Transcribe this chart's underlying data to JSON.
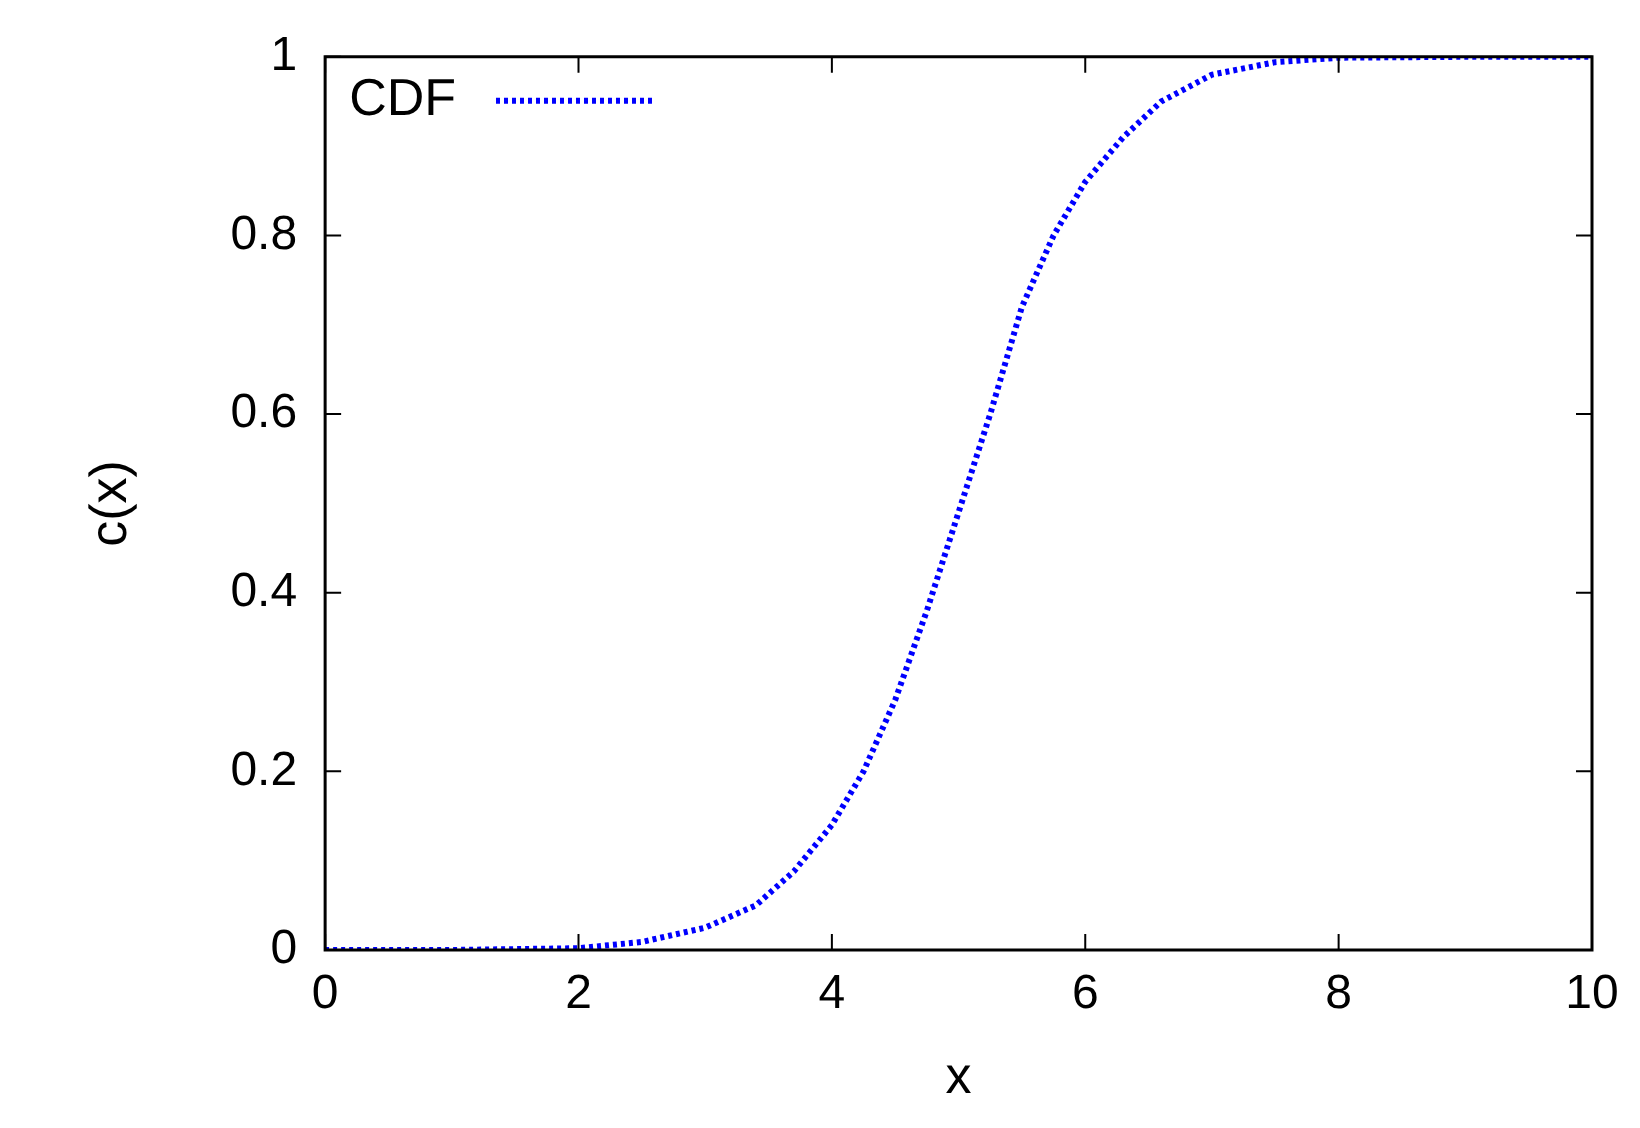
{
  "chart_data": {
    "type": "line",
    "xlabel": "x",
    "ylabel": "c(x)",
    "x": [
      0,
      1,
      2,
      2.5,
      3,
      3.4,
      3.7,
      4,
      4.25,
      4.5,
      4.75,
      5,
      5.25,
      5.5,
      5.75,
      6,
      6.3,
      6.6,
      7,
      7.5,
      8,
      9,
      10
    ],
    "series": [
      {
        "name": "CDF",
        "color": "#0000ff",
        "values": [
          0,
          0,
          0.002,
          0.009,
          0.025,
          0.05,
          0.088,
          0.14,
          0.2,
          0.28,
          0.38,
          0.49,
          0.6,
          0.72,
          0.8,
          0.86,
          0.91,
          0.95,
          0.98,
          0.994,
          0.999,
          1,
          1
        ]
      }
    ],
    "xlim": [
      0,
      10
    ],
    "xticks": [
      0,
      2,
      4,
      6,
      8,
      10
    ],
    "ylim": [
      0,
      1
    ],
    "yticks": [
      0,
      0.2,
      0.4,
      0.6,
      0.8,
      1
    ],
    "grid": false,
    "legend": "top left",
    "line_style": "dotted",
    "marker": "none"
  }
}
